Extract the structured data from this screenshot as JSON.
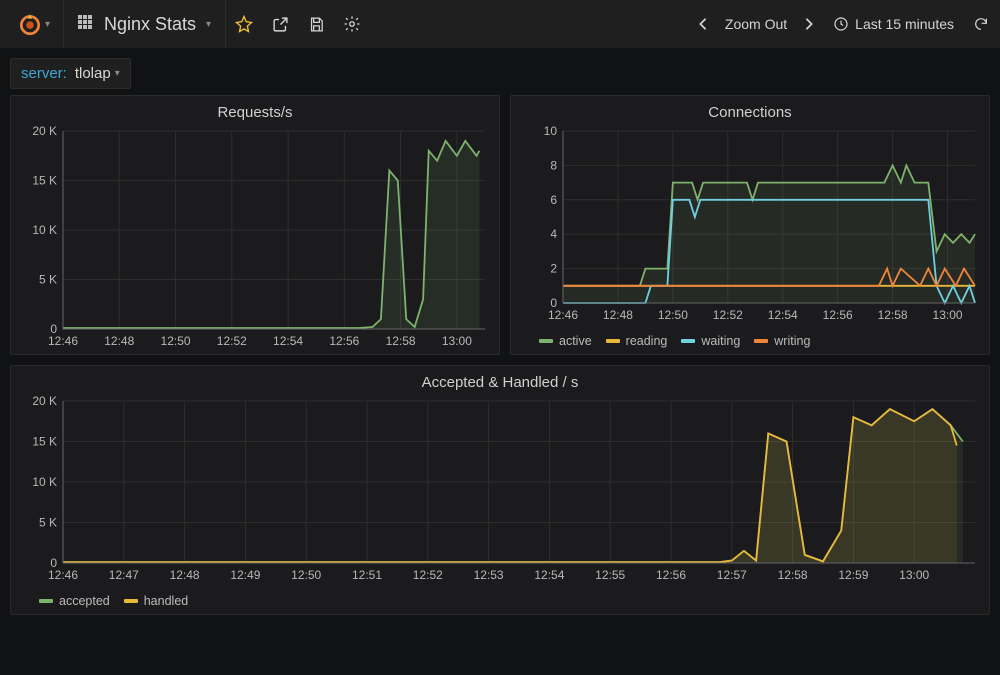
{
  "colors": {
    "bg": "#111214",
    "panel_bg": "#1b1b1d",
    "grid": "#2e2e2e",
    "axis": "#666666",
    "text": "#c7c7c7",
    "green": "#7eb26d",
    "yellow": "#eab839",
    "cyan": "#6ed0e0",
    "orange": "#ef843c",
    "star": "#f2c037",
    "link": "#3fa7d6"
  },
  "topbar": {
    "dash_title": "Nginx Stats",
    "zoom_label": "Zoom Out",
    "time_label": "Last 15 minutes"
  },
  "var": {
    "label": "server:",
    "value": "tlolap"
  },
  "panel1": {
    "title": "Requests/s",
    "type": "line-area",
    "xlim": [
      0,
      15
    ],
    "ylim": [
      0,
      20
    ],
    "yticks": [
      0,
      5,
      10,
      15,
      20
    ],
    "ytick_labels": [
      "0",
      "5 K",
      "10 K",
      "15 K",
      "20 K"
    ],
    "xticks": [
      0,
      2,
      4,
      6,
      8,
      10,
      12,
      14
    ],
    "xtick_labels": [
      "12:46",
      "12:48",
      "12:50",
      "12:52",
      "12:54",
      "12:56",
      "12:58",
      "13:00"
    ],
    "series": [
      {
        "name": "requests",
        "color": "#7eb26d",
        "fill": "#7eb26d",
        "fill_opacity": 0.12,
        "points": [
          [
            0,
            0.1
          ],
          [
            10.5,
            0.1
          ],
          [
            11.0,
            0.2
          ],
          [
            11.3,
            1.0
          ],
          [
            11.6,
            16.0
          ],
          [
            11.9,
            15.0
          ],
          [
            12.2,
            1.0
          ],
          [
            12.5,
            0.2
          ],
          [
            12.8,
            3.0
          ],
          [
            13.0,
            18.0
          ],
          [
            13.3,
            17.0
          ],
          [
            13.6,
            19.0
          ],
          [
            14.0,
            17.5
          ],
          [
            14.3,
            19.0
          ],
          [
            14.7,
            17.5
          ],
          [
            14.8,
            18.0
          ]
        ]
      }
    ]
  },
  "panel2": {
    "title": "Connections",
    "type": "line-area",
    "xlim": [
      0,
      15
    ],
    "ylim": [
      0,
      10
    ],
    "yticks": [
      0,
      2,
      4,
      6,
      8,
      10
    ],
    "ytick_labels": [
      "0",
      "2",
      "4",
      "6",
      "8",
      "10"
    ],
    "xticks": [
      0,
      2,
      4,
      6,
      8,
      10,
      12,
      14
    ],
    "xtick_labels": [
      "12:46",
      "12:48",
      "12:50",
      "12:52",
      "12:54",
      "12:56",
      "12:58",
      "13:00"
    ],
    "series": [
      {
        "name": "active",
        "color": "#7eb26d",
        "fill": "#7eb26d",
        "fill_opacity": 0.1,
        "points": [
          [
            0,
            1
          ],
          [
            2.8,
            1
          ],
          [
            3.0,
            2
          ],
          [
            3.8,
            2
          ],
          [
            4.0,
            7
          ],
          [
            4.7,
            7
          ],
          [
            4.9,
            6
          ],
          [
            5.1,
            7
          ],
          [
            6.7,
            7
          ],
          [
            6.9,
            6
          ],
          [
            7.1,
            7
          ],
          [
            11.7,
            7
          ],
          [
            12.0,
            8
          ],
          [
            12.3,
            7
          ],
          [
            12.5,
            8
          ],
          [
            12.8,
            7
          ],
          [
            13.3,
            7
          ],
          [
            13.6,
            3
          ],
          [
            13.9,
            4
          ],
          [
            14.2,
            3.5
          ],
          [
            14.5,
            4
          ],
          [
            14.8,
            3.5
          ],
          [
            15,
            4
          ]
        ]
      },
      {
        "name": "reading",
        "color": "#eab839",
        "fill": "none",
        "points": [
          [
            0,
            1
          ],
          [
            15,
            1
          ]
        ]
      },
      {
        "name": "waiting",
        "color": "#6ed0e0",
        "fill": "none",
        "points": [
          [
            0,
            0
          ],
          [
            3.0,
            0
          ],
          [
            3.2,
            1
          ],
          [
            3.8,
            1
          ],
          [
            4.0,
            6
          ],
          [
            4.6,
            6
          ],
          [
            4.8,
            5
          ],
          [
            5.0,
            6
          ],
          [
            11.8,
            6
          ],
          [
            12.0,
            6
          ],
          [
            12.5,
            6
          ],
          [
            13.3,
            6
          ],
          [
            13.6,
            1
          ],
          [
            13.9,
            0
          ],
          [
            14.2,
            1
          ],
          [
            14.5,
            0
          ],
          [
            14.8,
            1
          ],
          [
            15,
            0
          ]
        ]
      },
      {
        "name": "writing",
        "color": "#ef843c",
        "fill": "none",
        "points": [
          [
            0,
            1
          ],
          [
            11.5,
            1
          ],
          [
            11.8,
            2
          ],
          [
            12.0,
            1
          ],
          [
            12.3,
            2
          ],
          [
            13.0,
            1
          ],
          [
            13.3,
            2
          ],
          [
            13.6,
            1
          ],
          [
            13.9,
            2
          ],
          [
            14.3,
            1
          ],
          [
            14.6,
            2
          ],
          [
            15,
            1
          ]
        ]
      }
    ],
    "legend": [
      {
        "label": "active",
        "color": "#7eb26d"
      },
      {
        "label": "reading",
        "color": "#eab839"
      },
      {
        "label": "waiting",
        "color": "#6ed0e0"
      },
      {
        "label": "writing",
        "color": "#ef843c"
      }
    ]
  },
  "panel3": {
    "title": "Accepted & Handled / s",
    "type": "line-area",
    "xlim": [
      0,
      15
    ],
    "ylim": [
      0,
      20
    ],
    "yticks": [
      0,
      5,
      10,
      15,
      20
    ],
    "ytick_labels": [
      "0",
      "5 K",
      "10 K",
      "15 K",
      "20 K"
    ],
    "xticks": [
      0,
      1,
      2,
      3,
      4,
      5,
      6,
      7,
      8,
      9,
      10,
      11,
      12,
      13,
      14
    ],
    "xtick_labels": [
      "12:46",
      "12:47",
      "12:48",
      "12:49",
      "12:50",
      "12:51",
      "12:52",
      "12:53",
      "12:54",
      "12:55",
      "12:56",
      "12:57",
      "12:58",
      "12:59",
      "13:00"
    ],
    "series": [
      {
        "name": "accepted",
        "color": "#7eb26d",
        "fill": "#7eb26d",
        "fill_opacity": 0.1,
        "points": [
          [
            0,
            0.1
          ],
          [
            10.8,
            0.1
          ],
          [
            11.0,
            0.3
          ],
          [
            11.2,
            1.5
          ],
          [
            11.4,
            0.3
          ],
          [
            11.6,
            16.0
          ],
          [
            11.9,
            15.0
          ],
          [
            12.2,
            1.0
          ],
          [
            12.5,
            0.2
          ],
          [
            12.8,
            4.0
          ],
          [
            13.0,
            18.0
          ],
          [
            13.3,
            17.0
          ],
          [
            13.6,
            19.0
          ],
          [
            14.0,
            17.5
          ],
          [
            14.3,
            19.0
          ],
          [
            14.6,
            17.0
          ],
          [
            14.8,
            15.0
          ]
        ]
      },
      {
        "name": "handled",
        "color": "#eab839",
        "fill": "#eab839",
        "fill_opacity": 0.1,
        "points": [
          [
            0,
            0.1
          ],
          [
            10.8,
            0.1
          ],
          [
            11.0,
            0.3
          ],
          [
            11.2,
            1.5
          ],
          [
            11.4,
            0.3
          ],
          [
            11.6,
            16.0
          ],
          [
            11.9,
            15.0
          ],
          [
            12.2,
            1.0
          ],
          [
            12.5,
            0.2
          ],
          [
            12.8,
            4.0
          ],
          [
            13.0,
            18.0
          ],
          [
            13.3,
            17.0
          ],
          [
            13.6,
            19.0
          ],
          [
            14.0,
            17.5
          ],
          [
            14.3,
            19.0
          ],
          [
            14.6,
            17.0
          ],
          [
            14.7,
            14.5
          ]
        ]
      }
    ],
    "legend": [
      {
        "label": "accepted",
        "color": "#7eb26d"
      },
      {
        "label": "handled",
        "color": "#eab839"
      }
    ]
  }
}
